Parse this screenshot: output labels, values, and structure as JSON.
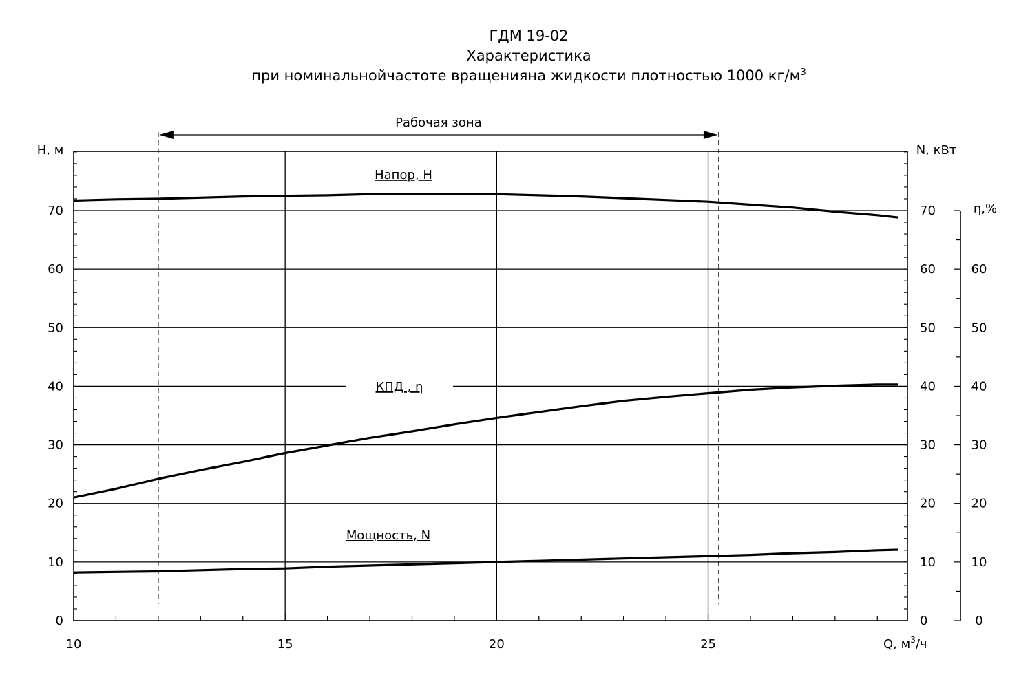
{
  "title": {
    "line1": "ГДМ 19-02",
    "line2": "Характеристика",
    "line3": "при номинальнойчастоте вращенияна жидкости плотностью 1000 кг/м",
    "line3_sup": "3"
  },
  "chart_data": {
    "type": "line",
    "working_zone": {
      "label": "Рабочая зона",
      "q_from": 12,
      "q_to": 25.25
    },
    "x_axis": {
      "label": "Q, м",
      "label_sup": "3",
      "label_unit": "/ч",
      "range": [
        10,
        29.5
      ],
      "ticks": [
        "10",
        "15",
        "20",
        "25"
      ]
    },
    "y_left": {
      "label": "H, м",
      "range": [
        0,
        80
      ],
      "ticks": [
        "0",
        "10",
        "20",
        "30",
        "40",
        "50",
        "60",
        "70"
      ]
    },
    "y_right": {
      "label": "N, кВт",
      "range": [
        0,
        80
      ],
      "ticks": [
        "0",
        "10",
        "20",
        "30",
        "40",
        "50",
        "60",
        "70"
      ]
    },
    "y_eta": {
      "label": "η,%",
      "range": [
        0,
        70
      ],
      "ticks": [
        "0",
        "10",
        "20",
        "30",
        "40",
        "50",
        "60"
      ]
    },
    "grid": true,
    "series": [
      {
        "name": "Напор, H",
        "axis": "left",
        "x": [
          10,
          11,
          12,
          13,
          14,
          15,
          16,
          17,
          18,
          19,
          20,
          21,
          22,
          23,
          24,
          25,
          26,
          27,
          28,
          29,
          29.5
        ],
        "values": [
          71.7,
          71.9,
          72.0,
          72.2,
          72.4,
          72.5,
          72.6,
          72.8,
          72.8,
          72.8,
          72.8,
          72.6,
          72.4,
          72.1,
          71.8,
          71.5,
          71.0,
          70.5,
          69.8,
          69.2,
          68.8
        ]
      },
      {
        "name": "КПД , η",
        "axis": "eta",
        "x": [
          10,
          11,
          12,
          13,
          14,
          15,
          16,
          17,
          18,
          19,
          20,
          21,
          22,
          23,
          24,
          25,
          26,
          27,
          28,
          29,
          29.5
        ],
        "values": [
          21.0,
          22.5,
          24.2,
          25.7,
          27.1,
          28.6,
          29.9,
          31.2,
          32.3,
          33.5,
          34.6,
          35.6,
          36.6,
          37.5,
          38.2,
          38.8,
          39.4,
          39.8,
          40.1,
          40.3,
          40.3
        ]
      },
      {
        "name": "Мощность, N",
        "axis": "right",
        "x": [
          10,
          11,
          12,
          13,
          14,
          15,
          16,
          17,
          18,
          19,
          20,
          21,
          22,
          23,
          24,
          25,
          26,
          27,
          28,
          29,
          29.5
        ],
        "values": [
          8.2,
          8.3,
          8.4,
          8.6,
          8.8,
          8.9,
          9.2,
          9.4,
          9.6,
          9.8,
          10.0,
          10.2,
          10.4,
          10.6,
          10.8,
          11.0,
          11.2,
          11.5,
          11.7,
          12.0,
          12.1
        ]
      }
    ]
  }
}
